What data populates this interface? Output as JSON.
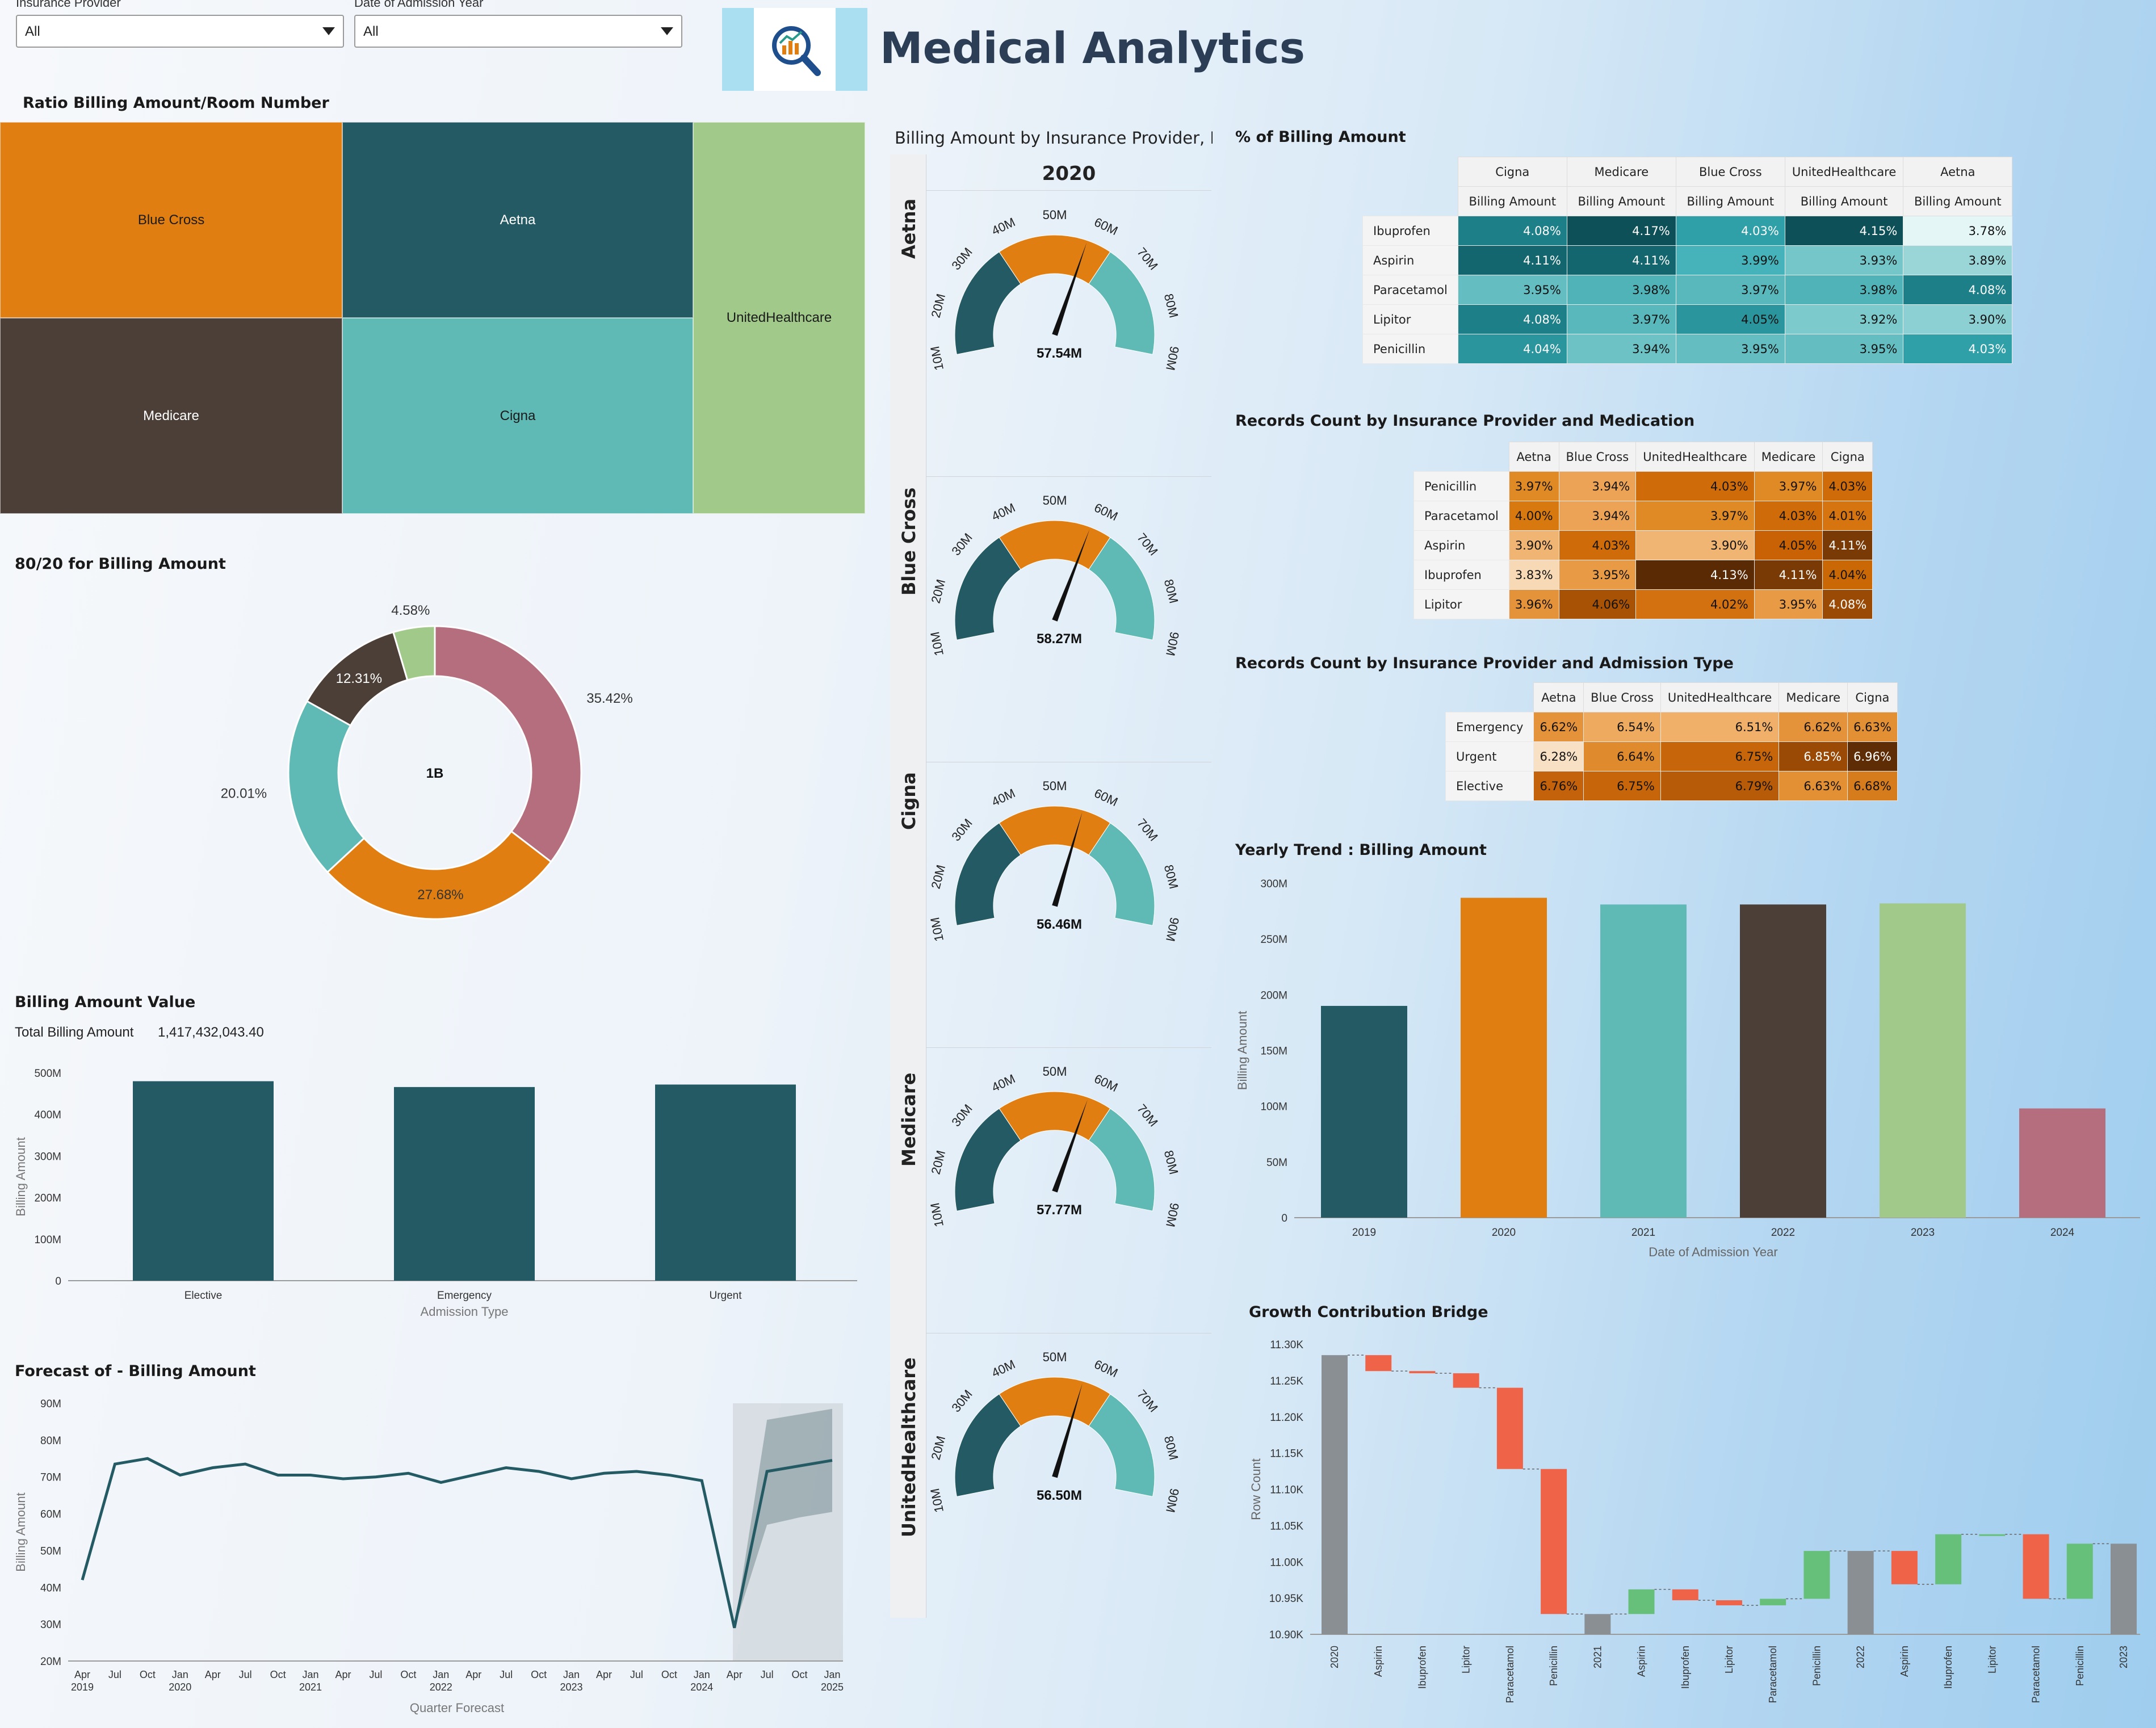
{
  "filters": {
    "insurance": {
      "label": "Insurance Provider",
      "value": "All"
    },
    "year": {
      "label": "Date of Admission Year",
      "value": "All"
    }
  },
  "header": {
    "title": "Medical Analytics"
  },
  "treemap": {
    "title": "Ratio Billing Amount/Room Number",
    "cells": [
      {
        "name": "Blue Cross",
        "color": "#e07e11",
        "text_color": "#1b1b1b"
      },
      {
        "name": "Aetna",
        "color": "#235a64",
        "text_color": "#ffffff"
      },
      {
        "name": "UnitedHealthcare",
        "color": "#a1ca8a",
        "text_color": "#1b1b1b"
      },
      {
        "name": "Medicare",
        "color": "#4c3f37",
        "text_color": "#ffffff"
      },
      {
        "name": "Cigna",
        "color": "#5fb9b5",
        "text_color": "#1b1b1b"
      }
    ]
  },
  "donut": {
    "title": "80/20 for Billing Amount",
    "center": "1B",
    "slices": [
      {
        "label": "35.42%",
        "value": 35.42,
        "color": "#b56e7d"
      },
      {
        "label": "27.68%",
        "value": 27.68,
        "color": "#e07e11"
      },
      {
        "label": "20.01%",
        "value": 20.01,
        "color": "#5fb9b5"
      },
      {
        "label": "12.31%",
        "value": 12.31,
        "color": "#4c3f37"
      },
      {
        "label": "4.58%",
        "value": 4.58,
        "color": "#a1ca8a"
      }
    ]
  },
  "billing_value": {
    "title": "Billing Amount Value",
    "total_label": "Total Billing Amount",
    "total_value": "1,417,432,043.40",
    "ylabel": "Billing Amount",
    "xlabel": "Admission Type",
    "yticks": [
      "500M",
      "400M",
      "300M",
      "200M",
      "100M",
      "0"
    ],
    "categories": [
      "Elective",
      "Emergency",
      "Urgent"
    ],
    "values": [
      480,
      466,
      472
    ],
    "ymax": 500,
    "color": "#235a64"
  },
  "forecast": {
    "title": "Forecast of - Billing Amount",
    "ylabel": "Billing Amount",
    "xlabel": "Quarter Forecast",
    "yticks": [
      "90M",
      "80M",
      "70M",
      "60M",
      "50M",
      "40M",
      "30M",
      "20M"
    ],
    "xticks": [
      [
        "Apr",
        "2019"
      ],
      [
        "Jul",
        ""
      ],
      [
        "Oct",
        ""
      ],
      [
        "Jan",
        "2020"
      ],
      [
        "Apr",
        ""
      ],
      [
        "Jul",
        ""
      ],
      [
        "Oct",
        ""
      ],
      [
        "Jan",
        "2021"
      ],
      [
        "Apr",
        ""
      ],
      [
        "Jul",
        ""
      ],
      [
        "Oct",
        ""
      ],
      [
        "Jan",
        "2022"
      ],
      [
        "Apr",
        ""
      ],
      [
        "Jul",
        ""
      ],
      [
        "Oct",
        ""
      ],
      [
        "Jan",
        "2023"
      ],
      [
        "Apr",
        ""
      ],
      [
        "Jul",
        ""
      ],
      [
        "Oct",
        ""
      ],
      [
        "Jan",
        "2024"
      ],
      [
        "Apr",
        ""
      ],
      [
        "Jul",
        ""
      ],
      [
        "Oct",
        ""
      ],
      [
        "Jan",
        "2025"
      ]
    ],
    "values": [
      42,
      73.5,
      75,
      70.5,
      72.5,
      73.5,
      70.5,
      70.5,
      69.5,
      70,
      71,
      68.5,
      70.5,
      72.5,
      71.5,
      69.5,
      71,
      71.5,
      70.5,
      69,
      29,
      71.5,
      73,
      74.5
    ],
    "band_upper": [
      null,
      null,
      null,
      null,
      null,
      null,
      null,
      null,
      null,
      null,
      null,
      null,
      null,
      null,
      null,
      null,
      null,
      null,
      null,
      null,
      29,
      85.5,
      87,
      88.5
    ],
    "band_lower": [
      null,
      null,
      null,
      null,
      null,
      null,
      null,
      null,
      null,
      null,
      null,
      null,
      null,
      null,
      null,
      null,
      null,
      null,
      null,
      null,
      29,
      57,
      59,
      60.5
    ],
    "ymin": 20,
    "ymax": 90
  },
  "gauges": {
    "title": "Billing Amount by Insurance Provider, Date",
    "year": "2020",
    "ticks": [
      "10M",
      "20M",
      "30M",
      "40M",
      "50M",
      "60M",
      "70M",
      "80M",
      "90M"
    ],
    "items": [
      {
        "provider": "Aetna",
        "value": 57.54,
        "label": "57.54M"
      },
      {
        "provider": "Blue Cross",
        "value": 58.27,
        "label": "58.27M"
      },
      {
        "provider": "Cigna",
        "value": 56.46,
        "label": "56.46M"
      },
      {
        "provider": "Medicare",
        "value": 57.77,
        "label": "57.77M"
      },
      {
        "provider": "UnitedHealthcare",
        "value": 56.5,
        "label": "56.50M"
      }
    ]
  },
  "pct_billing": {
    "title": "% of Billing Amount",
    "providers": [
      "Cigna",
      "Medicare",
      "Blue Cross",
      "UnitedHealthcare",
      "Aetna"
    ],
    "measure": "Billing Amount",
    "rows": [
      {
        "label": "Ibuprofen",
        "cells": [
          "4.08%",
          "4.17%",
          "4.03%",
          "4.15%",
          "3.78%"
        ],
        "colors": [
          "#1d7f87",
          "#0d5058",
          "#2fa0a8",
          "#0d5058",
          "#e4f6f6"
        ],
        "dark": [
          1,
          1,
          1,
          1,
          0
        ]
      },
      {
        "label": "Aspirin",
        "cells": [
          "4.11%",
          "4.11%",
          "3.99%",
          "3.93%",
          "3.89%"
        ],
        "colors": [
          "#14666e",
          "#14666e",
          "#45b3b9",
          "#75c6c9",
          "#9ad6d8"
        ],
        "dark": [
          1,
          1,
          0,
          0,
          0
        ]
      },
      {
        "label": "Paracetamol",
        "cells": [
          "3.95%",
          "3.98%",
          "3.97%",
          "3.98%",
          "4.08%"
        ],
        "colors": [
          "#63bdc1",
          "#4fb3b8",
          "#58b8bc",
          "#4fb3b8",
          "#1d7f87"
        ],
        "dark": [
          0,
          0,
          0,
          0,
          1
        ]
      },
      {
        "label": "Lipitor",
        "cells": [
          "4.08%",
          "3.97%",
          "4.05%",
          "3.92%",
          "3.90%"
        ],
        "colors": [
          "#1d7f87",
          "#58b8bc",
          "#2b959d",
          "#7dcacd",
          "#8dd0d3"
        ],
        "dark": [
          1,
          0,
          0,
          0,
          0
        ]
      },
      {
        "label": "Penicillin",
        "cells": [
          "4.04%",
          "3.94%",
          "3.95%",
          "3.95%",
          "4.03%"
        ],
        "colors": [
          "#2b959d",
          "#6cc2c5",
          "#63bdc1",
          "#63bdc1",
          "#2fa0a8"
        ],
        "dark": [
          1,
          0,
          0,
          0,
          1
        ]
      }
    ]
  },
  "records_med": {
    "title": "Records Count by Insurance Provider and Medication",
    "providers": [
      "Aetna",
      "Blue Cross",
      "UnitedHealthcare",
      "Medicare",
      "Cigna"
    ],
    "rows": [
      {
        "label": "Penicillin",
        "cells": [
          "3.97%",
          "3.94%",
          "4.03%",
          "3.97%",
          "4.03%"
        ],
        "colors": [
          "#e08a26",
          "#eca355",
          "#cf6c09",
          "#e08a26",
          "#cf6c09"
        ],
        "dark": [
          0,
          0,
          0,
          0,
          0
        ]
      },
      {
        "label": "Paracetamol",
        "cells": [
          "4.00%",
          "3.94%",
          "3.97%",
          "4.03%",
          "4.01%"
        ],
        "colors": [
          "#d8790f",
          "#eca355",
          "#e08a26",
          "#cf6c09",
          "#d67510"
        ],
        "dark": [
          0,
          0,
          0,
          0,
          0
        ]
      },
      {
        "label": "Aspirin",
        "cells": [
          "3.90%",
          "4.03%",
          "3.90%",
          "4.05%",
          "4.11%"
        ],
        "colors": [
          "#f0b473",
          "#cf6c09",
          "#f0b473",
          "#c86205",
          "#7a3a05"
        ],
        "dark": [
          0,
          0,
          0,
          0,
          1
        ]
      },
      {
        "label": "Ibuprofen",
        "cells": [
          "3.83%",
          "3.95%",
          "4.13%",
          "4.11%",
          "4.04%"
        ],
        "colors": [
          "#f7d9b5",
          "#e89a45",
          "#5a2a05",
          "#7a3a05",
          "#c96805"
        ],
        "dark": [
          0,
          0,
          1,
          1,
          0
        ]
      },
      {
        "label": "Lipitor",
        "cells": [
          "3.96%",
          "4.06%",
          "4.02%",
          "3.95%",
          "4.08%"
        ],
        "colors": [
          "#e5933a",
          "#a85206",
          "#d37010",
          "#e89a45",
          "#9a4a05"
        ],
        "dark": [
          0,
          0,
          0,
          0,
          1
        ]
      }
    ]
  },
  "records_adm": {
    "title": "Records Count by Insurance Provider and Admission Type",
    "providers": [
      "Aetna",
      "Blue Cross",
      "UnitedHealthcare",
      "Medicare",
      "Cigna"
    ],
    "rows": [
      {
        "label": "Emergency",
        "cells": [
          "6.62%",
          "6.54%",
          "6.51%",
          "6.62%",
          "6.63%"
        ],
        "colors": [
          "#e5933a",
          "#eeaa5e",
          "#f0b06a",
          "#e5933a",
          "#e38f33"
        ],
        "dark": [
          0,
          0,
          0,
          0,
          0
        ]
      },
      {
        "label": "Urgent",
        "cells": [
          "6.28%",
          "6.64%",
          "6.75%",
          "6.85%",
          "6.96%"
        ],
        "colors": [
          "#f8e0c4",
          "#df8a2c",
          "#c6650a",
          "#9a4a05",
          "#5e2c05"
        ],
        "dark": [
          0,
          0,
          0,
          1,
          1
        ]
      },
      {
        "label": "Elective",
        "cells": [
          "6.76%",
          "6.75%",
          "6.79%",
          "6.63%",
          "6.68%"
        ],
        "colors": [
          "#c3620a",
          "#c6650a",
          "#b85b08",
          "#e38f33",
          "#d67c1c"
        ],
        "dark": [
          0,
          0,
          0,
          0,
          0
        ]
      }
    ]
  },
  "yearly": {
    "title": "Yearly Trend : Billing Amount",
    "ylabel": "Billing Amount",
    "xlabel": "Date of Admission Year",
    "yticks": [
      "300M",
      "250M",
      "200M",
      "150M",
      "100M",
      "50M",
      "0"
    ],
    "categories": [
      "2019",
      "2020",
      "2021",
      "2022",
      "2023",
      "2024"
    ],
    "values": [
      190,
      287,
      281,
      281,
      282,
      98
    ],
    "colors": [
      "#235a64",
      "#e07e11",
      "#5fb9b5",
      "#4c3f37",
      "#a1ca8a",
      "#b56e7d"
    ],
    "ymax": 300
  },
  "bridge": {
    "title": "Growth Contribution Bridge",
    "ylabel": "Row Count",
    "yticks": [
      "11.30K",
      "11.25K",
      "11.20K",
      "11.15K",
      "11.10K",
      "11.05K",
      "11.00K",
      "10.95K",
      "10.90K"
    ],
    "ymin": 10900,
    "ymax": 11300,
    "categories": [
      "2020",
      "Aspirin",
      "Ibuprofen",
      "Lipitor",
      "Paracetamol",
      "Penicillin",
      "2021",
      "Aspirin",
      "Ibuprofen",
      "Lipitor",
      "Paracetamol",
      "Penicillin",
      "2022",
      "Aspirin",
      "Ibuprofen",
      "Lipitor",
      "Paracetamol",
      "Penicillin",
      "2023"
    ],
    "bars": [
      {
        "type": "total",
        "start": 10900,
        "end": 11285
      },
      {
        "type": "down",
        "start": 11285,
        "end": 11263
      },
      {
        "type": "down",
        "start": 11263,
        "end": 11260
      },
      {
        "type": "down",
        "start": 11260,
        "end": 11240
      },
      {
        "type": "down",
        "start": 11240,
        "end": 11128
      },
      {
        "type": "down",
        "start": 11128,
        "end": 10928
      },
      {
        "type": "total",
        "start": 10900,
        "end": 10928
      },
      {
        "type": "up",
        "start": 10928,
        "end": 10962
      },
      {
        "type": "down",
        "start": 10962,
        "end": 10947
      },
      {
        "type": "down",
        "start": 10947,
        "end": 10940
      },
      {
        "type": "up",
        "start": 10940,
        "end": 10949
      },
      {
        "type": "up",
        "start": 10949,
        "end": 11015
      },
      {
        "type": "total",
        "start": 10900,
        "end": 11015
      },
      {
        "type": "down",
        "start": 11015,
        "end": 10969
      },
      {
        "type": "up",
        "start": 10969,
        "end": 11038
      },
      {
        "type": "up",
        "start": 11038,
        "end": 11038
      },
      {
        "type": "down",
        "start": 11038,
        "end": 10949
      },
      {
        "type": "up",
        "start": 10949,
        "end": 11025
      },
      {
        "type": "total",
        "start": 10900,
        "end": 11025
      }
    ],
    "colors": {
      "total": "#8a8f94",
      "up": "#67c07a",
      "down": "#ef6449"
    }
  }
}
